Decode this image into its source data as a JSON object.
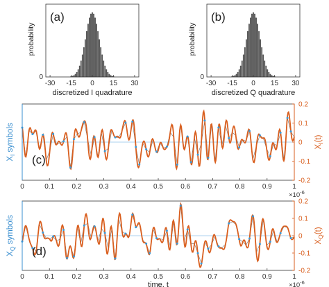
{
  "chart_data": [
    {
      "panel": "(a)",
      "type": "bar",
      "ylabel": "probability",
      "xlabel": "discretized I quadrature",
      "xticks": [
        "-30",
        "-15",
        "0",
        "15",
        "30"
      ],
      "yticks": [
        "0"
      ],
      "xlim": [
        -33,
        33
      ],
      "ylim": [
        0,
        0.1
      ],
      "grid": false,
      "distribution": "gaussian",
      "center": 0,
      "std": 4.8,
      "bin_range": [
        -15,
        15
      ],
      "bar_color": "#5b5b5b"
    },
    {
      "panel": "(b)",
      "type": "bar",
      "ylabel": "probability",
      "xlabel": "discretized Q quadrature",
      "xticks": [
        "-30",
        "-15",
        "0",
        "15",
        "30"
      ],
      "yticks": [
        "0"
      ],
      "xlim": [
        -33,
        33
      ],
      "ylim": [
        0,
        0.1
      ],
      "grid": false,
      "distribution": "gaussian",
      "center": 0,
      "std": 4.8,
      "bin_range": [
        -15,
        15
      ],
      "bar_color": "#5b5b5b"
    },
    {
      "panel": "(c)",
      "type": "line",
      "ylabel_left_main": "X",
      "ylabel_left_sub": "I",
      "ylabel_left_tail": " symbols",
      "ylabel_right_main": "X",
      "ylabel_right_sub": "I",
      "ylabel_right_tail": "(t)",
      "xticks": [
        "0",
        "0.1",
        "0.2",
        "0.3",
        "0.4",
        "0.5",
        "0.6",
        "0.7",
        "0.8",
        "0.9",
        "1"
      ],
      "x_exponent": "×10",
      "x_exponent_power": "-6",
      "yticks_right": [
        "0.2",
        "0.1",
        "0",
        "-0.1",
        "-0.2"
      ],
      "xlim": [
        0,
        1e-06
      ],
      "ylim": [
        -0.2,
        0.2
      ],
      "symbol_count": 80,
      "series": [
        {
          "name": "symbols",
          "color": "#3a9ad9",
          "style": "markers+thin"
        },
        {
          "name": "waveform",
          "color": "#d95f1f",
          "style": "line"
        }
      ],
      "seed": 7
    },
    {
      "panel": "(d)",
      "type": "line",
      "ylabel_left_main": "X",
      "ylabel_left_sub": "Q",
      "ylabel_left_tail": " symbols",
      "ylabel_right_main": "X",
      "ylabel_right_sub": "Q",
      "ylabel_right_tail": "(t)",
      "xlabel": "time, t",
      "xticks": [
        "0",
        "0.1",
        "0.2",
        "0.3",
        "0.4",
        "0.5",
        "0.6",
        "0.7",
        "0.8",
        "0.9",
        "1"
      ],
      "x_exponent": "×10",
      "x_exponent_power": "-6",
      "yticks_right": [
        "0.2",
        "0.1",
        "0",
        "-0.1",
        "-0.2"
      ],
      "xlim": [
        0,
        1e-06
      ],
      "ylim": [
        -0.2,
        0.2
      ],
      "symbol_count": 80,
      "series": [
        {
          "name": "symbols",
          "color": "#3a9ad9",
          "style": "markers+thin"
        },
        {
          "name": "waveform",
          "color": "#d95f1f",
          "style": "line"
        }
      ],
      "seed": 23
    }
  ],
  "colors": {
    "axis": "#333333",
    "blue_axis": "#3a8fd0",
    "orange_axis": "#d95f1f"
  }
}
